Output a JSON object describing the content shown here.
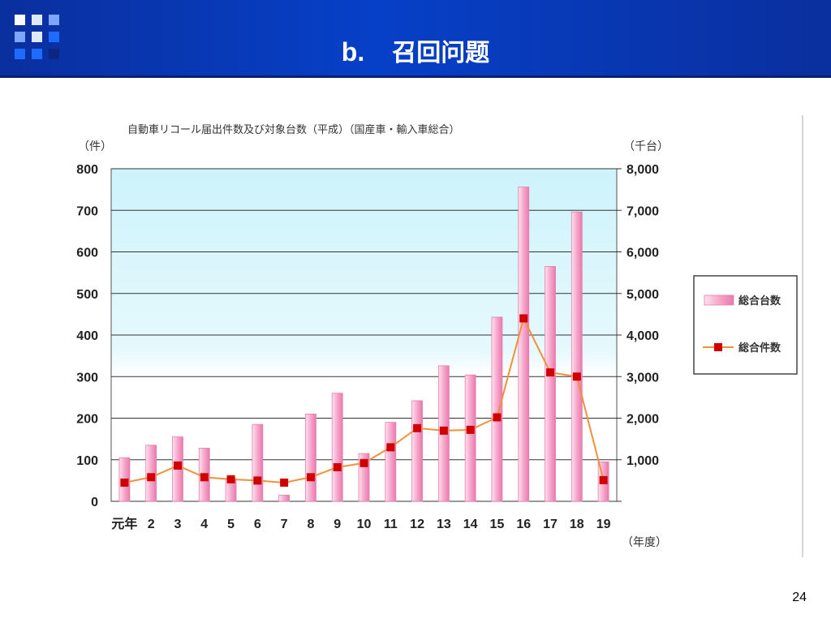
{
  "slide": {
    "letter": "b.",
    "title": "召回问题",
    "page_number": "24"
  },
  "colors": {
    "header": "#0640c8",
    "bar": "#f9b4d4",
    "line": "#f0903a",
    "marker": "#d00000",
    "plot_top": "#d8f6fc"
  },
  "chart_data": {
    "type": "bar",
    "title": "自動車リコール届出件数及び対象台数（平成）（国産車・輸入車総合）",
    "left_unit": "（件）",
    "right_unit": "（千台）",
    "x_unit": "（年度）",
    "categories": [
      "元年",
      "2",
      "3",
      "4",
      "5",
      "6",
      "7",
      "8",
      "9",
      "10",
      "11",
      "12",
      "13",
      "14",
      "15",
      "16",
      "17",
      "18",
      "19"
    ],
    "y_left": {
      "min": 0,
      "max": 800,
      "ticks": [
        "0",
        "100",
        "200",
        "300",
        "400",
        "500",
        "600",
        "700",
        "800"
      ]
    },
    "y_right": {
      "min": 0,
      "max": 8000,
      "ticks": [
        "",
        "1,000",
        "2,000",
        "3,000",
        "4,000",
        "5,000",
        "6,000",
        "7,000",
        "8,000"
      ]
    },
    "grid": true,
    "legend_position": "right",
    "series": [
      {
        "name": "総合台数",
        "kind": "bar",
        "axis": "right",
        "values": [
          1050,
          1350,
          1550,
          1280,
          550,
          1850,
          150,
          2100,
          2600,
          1150,
          1900,
          2420,
          3260,
          3040,
          4430,
          7560,
          5650,
          6960,
          950
        ]
      },
      {
        "name": "総合件数",
        "kind": "line",
        "axis": "left",
        "values": [
          45,
          58,
          86,
          58,
          53,
          50,
          45,
          58,
          82,
          92,
          130,
          176,
          170,
          172,
          202,
          440,
          310,
          300,
          51
        ]
      }
    ]
  }
}
